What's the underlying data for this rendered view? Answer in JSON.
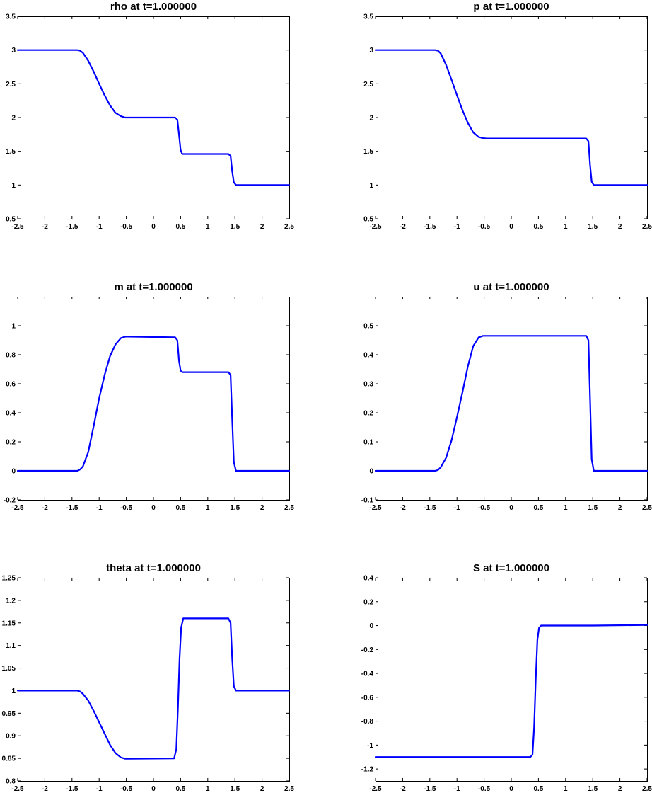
{
  "chart_data": [
    {
      "type": "line",
      "title": "rho at t=1.000000",
      "xlim": [
        -2.5,
        2.5
      ],
      "ylim": [
        0.5,
        3.5
      ],
      "xticks": [
        "-2.5",
        "-2",
        "-1.5",
        "-1",
        "-0.5",
        "0",
        "0.5",
        "1",
        "1.5",
        "2",
        "2.5"
      ],
      "yticks": [
        "0.5",
        "1",
        "1.5",
        "2",
        "2.5",
        "3",
        "3.5"
      ],
      "series": [
        {
          "name": "rho",
          "color": "#0000ff",
          "x": [
            -2.5,
            -1.4,
            -1.35,
            -1.3,
            -1.2,
            -1.1,
            -1.0,
            -0.9,
            -0.8,
            -0.7,
            -0.6,
            -0.52,
            -0.45,
            0.4,
            0.44,
            0.47,
            0.5,
            0.53,
            1.38,
            1.42,
            1.45,
            1.48,
            1.52,
            2.5
          ],
          "y": [
            3.0,
            3.0,
            2.99,
            2.96,
            2.84,
            2.68,
            2.5,
            2.33,
            2.18,
            2.07,
            2.02,
            2.0,
            2.0,
            2.0,
            1.97,
            1.75,
            1.52,
            1.46,
            1.46,
            1.43,
            1.2,
            1.04,
            1.0,
            1.0
          ]
        }
      ]
    },
    {
      "type": "line",
      "title": "p at t=1.000000",
      "xlim": [
        -2.5,
        2.5
      ],
      "ylim": [
        0.5,
        3.5
      ],
      "xticks": [
        "-2.5",
        "-2",
        "-1.5",
        "-1",
        "-0.5",
        "0",
        "0.5",
        "1",
        "1.5",
        "2",
        "2.5"
      ],
      "yticks": [
        "0.5",
        "1",
        "1.5",
        "2",
        "2.5",
        "3",
        "3.5"
      ],
      "series": [
        {
          "name": "p",
          "color": "#0000ff",
          "x": [
            -2.5,
            -1.4,
            -1.35,
            -1.3,
            -1.2,
            -1.1,
            -1.0,
            -0.9,
            -0.8,
            -0.7,
            -0.6,
            -0.52,
            -0.45,
            1.38,
            1.42,
            1.45,
            1.48,
            1.52,
            2.5
          ],
          "y": [
            3.0,
            3.0,
            2.99,
            2.95,
            2.78,
            2.56,
            2.33,
            2.11,
            1.92,
            1.78,
            1.71,
            1.695,
            1.69,
            1.69,
            1.65,
            1.3,
            1.05,
            1.0,
            1.0
          ]
        }
      ]
    },
    {
      "type": "line",
      "title": "m at t=1.000000",
      "xlim": [
        -2.5,
        2.5
      ],
      "ylim": [
        -0.2,
        1.2
      ],
      "xticks": [
        "-2.5",
        "-2",
        "-1.5",
        "-1",
        "-0.5",
        "0",
        "0.5",
        "1",
        "1.5",
        "2",
        "2.5"
      ],
      "yticks": [
        "-0.2",
        "0",
        "0.2",
        "0.4",
        "0.6",
        "0.8",
        "1"
      ],
      "series": [
        {
          "name": "m",
          "color": "#0000ff",
          "x": [
            -2.5,
            -1.4,
            -1.35,
            -1.3,
            -1.2,
            -1.1,
            -1.0,
            -0.9,
            -0.8,
            -0.7,
            -0.6,
            -0.52,
            -0.45,
            0.4,
            0.44,
            0.47,
            0.5,
            0.53,
            1.38,
            1.42,
            1.45,
            1.48,
            1.52,
            2.5
          ],
          "y": [
            0.0,
            0.0,
            0.01,
            0.03,
            0.13,
            0.31,
            0.5,
            0.66,
            0.79,
            0.87,
            0.915,
            0.925,
            0.925,
            0.92,
            0.9,
            0.76,
            0.69,
            0.68,
            0.68,
            0.66,
            0.35,
            0.06,
            0.0,
            0.0
          ]
        }
      ]
    },
    {
      "type": "line",
      "title": "u at t=1.000000",
      "xlim": [
        -2.5,
        2.5
      ],
      "ylim": [
        -0.1,
        0.6
      ],
      "xticks": [
        "-2.5",
        "-2",
        "-1.5",
        "-1",
        "-0.5",
        "0",
        "0.5",
        "1",
        "1.5",
        "2",
        "2.5"
      ],
      "yticks": [
        "-0.1",
        "0",
        "0.1",
        "0.2",
        "0.3",
        "0.4",
        "0.5"
      ],
      "series": [
        {
          "name": "u",
          "color": "#0000ff",
          "x": [
            -2.5,
            -1.4,
            -1.35,
            -1.3,
            -1.2,
            -1.1,
            -1.0,
            -0.9,
            -0.8,
            -0.7,
            -0.6,
            -0.52,
            -0.45,
            1.38,
            1.42,
            1.45,
            1.48,
            1.52,
            2.5
          ],
          "y": [
            0.0,
            0.0,
            0.003,
            0.012,
            0.045,
            0.105,
            0.185,
            0.27,
            0.36,
            0.43,
            0.46,
            0.465,
            0.465,
            0.465,
            0.45,
            0.25,
            0.04,
            0.0,
            0.0
          ]
        }
      ]
    },
    {
      "type": "line",
      "title": "theta at t=1.000000",
      "xlim": [
        -2.5,
        2.5
      ],
      "ylim": [
        0.8,
        1.25
      ],
      "xticks": [
        "-2.5",
        "-2",
        "-1.5",
        "-1",
        "-0.5",
        "0",
        "0.5",
        "1",
        "1.5",
        "2",
        "2.5"
      ],
      "yticks": [
        "0.8",
        "0.85",
        "0.9",
        "0.95",
        "1",
        "1.05",
        "1.1",
        "1.15",
        "1.2",
        "1.25"
      ],
      "series": [
        {
          "name": "theta",
          "color": "#0000ff",
          "x": [
            -2.5,
            -1.4,
            -1.35,
            -1.3,
            -1.2,
            -1.1,
            -1.0,
            -0.9,
            -0.8,
            -0.7,
            -0.6,
            -0.52,
            -0.45,
            0.38,
            0.42,
            0.45,
            0.48,
            0.51,
            0.55,
            1.38,
            1.42,
            1.45,
            1.48,
            1.52,
            2.5
          ],
          "y": [
            1.0,
            1.0,
            0.998,
            0.993,
            0.978,
            0.955,
            0.93,
            0.905,
            0.88,
            0.862,
            0.852,
            0.849,
            0.849,
            0.85,
            0.87,
            0.96,
            1.07,
            1.14,
            1.16,
            1.16,
            1.15,
            1.07,
            1.01,
            1.0,
            1.0
          ]
        }
      ]
    },
    {
      "type": "line",
      "title": "S at t=1.000000",
      "xlim": [
        -2.5,
        2.5
      ],
      "ylim": [
        -1.3,
        0.4
      ],
      "xticks": [
        "-2.5",
        "-2",
        "-1.5",
        "-1",
        "-0.5",
        "0",
        "0.5",
        "1",
        "1.5",
        "2",
        "2.5"
      ],
      "yticks": [
        "-1.2",
        "-1",
        "-0.8",
        "-0.6",
        "-0.4",
        "-0.2",
        "0",
        "0.2",
        "0.4"
      ],
      "series": [
        {
          "name": "S",
          "color": "#0000ff",
          "x": [
            -2.5,
            0.35,
            0.39,
            0.42,
            0.45,
            0.48,
            0.51,
            0.55,
            1.5,
            2.5
          ],
          "y": [
            -1.1,
            -1.1,
            -1.08,
            -0.85,
            -0.45,
            -0.12,
            -0.02,
            0.0,
            0.0,
            0.005
          ]
        }
      ]
    }
  ]
}
